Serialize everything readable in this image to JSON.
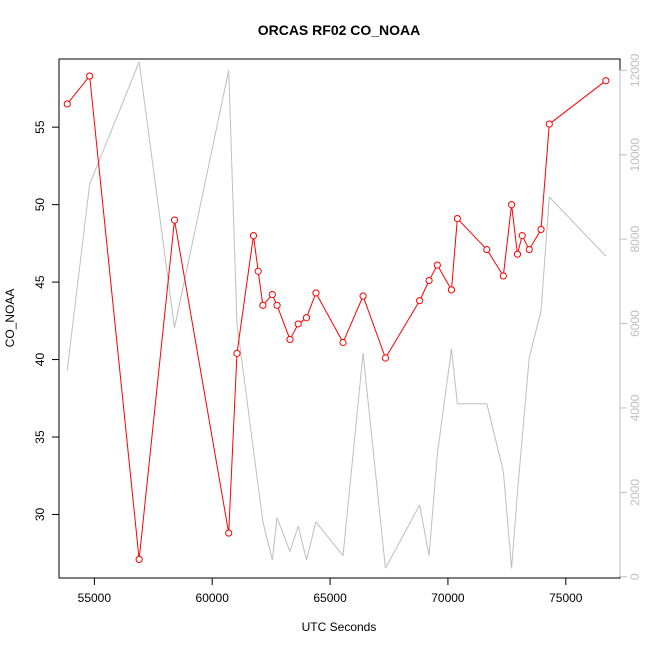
{
  "chart_data": {
    "type": "line",
    "title": "ORCAS RF02 CO_NOAA",
    "xlabel": "UTC Seconds",
    "ylabel": "CO_NOAA",
    "xlim": [
      53500,
      77300
    ],
    "ylim": [
      25.9,
      59.4
    ],
    "y2lim": [
      -30,
      12270
    ],
    "x_ticks": [
      55000,
      60000,
      65000,
      70000,
      75000
    ],
    "y_ticks": [
      30,
      35,
      40,
      45,
      50,
      55
    ],
    "y2_ticks": [
      0,
      2000,
      4000,
      6000,
      8000,
      10000,
      12000
    ],
    "colors": {
      "primary": "#ff0000",
      "secondary": "#bebebe",
      "axis": "#000000",
      "right_axis": "#bebebe"
    },
    "series": [
      {
        "axis": "left",
        "markers": true,
        "x": [
          53850,
          54800,
          56900,
          58400,
          60700,
          61050,
          61750,
          61950,
          62150,
          62550,
          62750,
          63300,
          63650,
          64000,
          64400,
          65550,
          66400,
          67350,
          68800,
          69200,
          69550,
          70150,
          70400,
          71650,
          72350,
          72700,
          72950,
          73150,
          73450,
          73950,
          74300,
          76700
        ],
        "y": [
          56.5,
          58.3,
          27.1,
          49.0,
          28.8,
          40.4,
          48.0,
          45.7,
          43.5,
          44.2,
          43.5,
          41.3,
          42.3,
          42.7,
          44.3,
          41.1,
          44.1,
          40.1,
          43.8,
          45.1,
          46.1,
          44.5,
          49.1,
          47.1,
          45.4,
          50.0,
          46.8,
          48.0,
          47.1,
          48.4,
          55.2,
          58.0
        ]
      },
      {
        "axis": "right",
        "markers": false,
        "x": [
          53850,
          54800,
          56900,
          58400,
          60700,
          61050,
          62150,
          62550,
          62750,
          63300,
          63650,
          64000,
          64400,
          65550,
          66400,
          67350,
          68800,
          69200,
          69550,
          70150,
          70400,
          71650,
          72350,
          72700,
          72950,
          73450,
          73950,
          74300,
          76700
        ],
        "y": [
          4900,
          9300,
          12200,
          5900,
          12000,
          6000,
          1300,
          400,
          1400,
          600,
          1200,
          400,
          1300,
          500,
          5300,
          200,
          1700,
          500,
          2900,
          5400,
          4100,
          4100,
          2500,
          200,
          2000,
          5200,
          6300,
          9000,
          7600
        ]
      }
    ]
  }
}
